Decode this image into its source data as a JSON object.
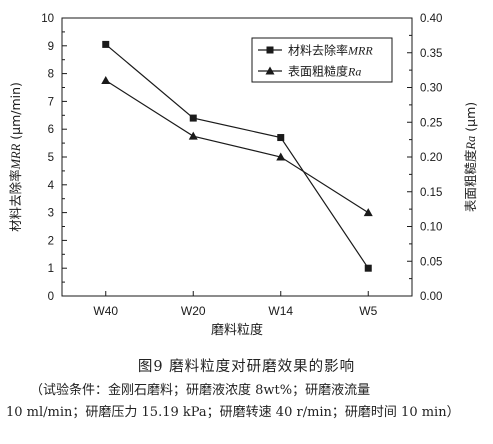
{
  "chart_data": {
    "type": "line",
    "categories": [
      "W40",
      "W20",
      "W14",
      "W5"
    ],
    "xlabel": "磨料粒度",
    "y_left": {
      "label_prefix": "材料去除率",
      "label_symbol": "MRR",
      "label_unit": " (μm/min)",
      "lim": [
        0,
        10
      ],
      "ticks": [
        "0",
        "1",
        "2",
        "3",
        "4",
        "5",
        "6",
        "7",
        "8",
        "9",
        "10"
      ]
    },
    "y_right": {
      "label_prefix": "表面粗糙度",
      "label_symbol": "Ra",
      "label_unit": " (μm)",
      "lim": [
        0,
        0.4
      ],
      "ticks": [
        "0.00",
        "0.05",
        "0.10",
        "0.15",
        "0.20",
        "0.25",
        "0.30",
        "0.35",
        "0.40"
      ]
    },
    "series": [
      {
        "name_prefix": "材料去除率",
        "name_symbol": "MRR",
        "axis": "left",
        "marker": "square",
        "values": [
          9.05,
          6.4,
          5.7,
          1.0
        ]
      },
      {
        "name_prefix": "表面粗糙度",
        "name_symbol": "Ra",
        "axis": "right",
        "marker": "triangle",
        "values": [
          0.31,
          0.23,
          0.2,
          0.12
        ]
      }
    ],
    "legend": "top-right",
    "grid": false
  },
  "caption": {
    "title": "图9    磨料粒度对研磨效果的影响",
    "line1": "（试验条件：金刚石磨料；研磨液浓度 8wt%；研磨液流量",
    "line2": "10 ml/min；研磨压力 15.19 kPa；研磨转速 40 r/min；研磨时间 10 min）"
  },
  "colors": {
    "line": "#1a1a1a",
    "axis": "#1a1a1a"
  }
}
